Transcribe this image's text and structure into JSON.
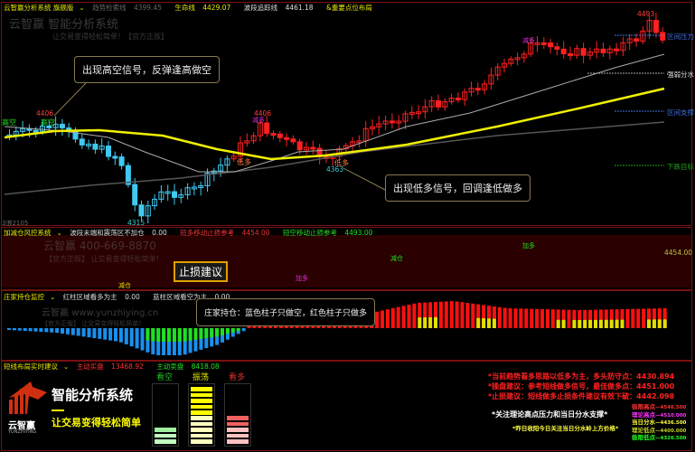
{
  "main_panel": {
    "system_name": "云智赢分析系统 旗舰版",
    "trend_line": {
      "label": "趋势检索线",
      "value": "4399.45"
    },
    "life_line": {
      "label": "生命线",
      "value": "4429.07"
    },
    "wave_line": {
      "label": "波段追踪线",
      "value": "4461.18"
    },
    "key_points": "&重要点位布局",
    "watermark_brand": "云智赢 智能分析系统",
    "watermark_slogan": "让交易变得轻松简单！【官方正版】",
    "price_labels": {
      "high_left": "4406",
      "low": "4315",
      "high_mid": "4406",
      "low_mid": "4363",
      "high_right": "4493"
    },
    "signals": {
      "gao_kong": "高空",
      "gao_kong2": "高空",
      "di_duo": "低多",
      "di_duo2": "低多",
      "jian_duo": "减多",
      "jian_duo2": "减多"
    },
    "bubble_short": "出现高空信号，反弹逢高做空",
    "bubble_long": "出现低多信号，回调逢低做多",
    "right_labels": {
      "pressure": "区间压力",
      "divider": "强弱分水",
      "support": "区间支撑",
      "target": "下跌目标"
    },
    "bottom_label": "3浪2105"
  },
  "risk_panel": {
    "title": "加减仓风控系统",
    "item1": {
      "label": "波段末端和震荡区不加仓",
      "value": "0.00"
    },
    "item2": {
      "label": "短多移动止损参考",
      "value": "4454.00"
    },
    "item3": {
      "label": "短空移动止损参考",
      "value": "4493.00"
    },
    "watermark_phone": "云智赢 400-669-8870",
    "watermark_slogan": "【官方正版】 让交易变得轻松简单！",
    "stop_loss_callout": "止损建议",
    "labels": {
      "reduce": "减仓",
      "reduce2": "减仓",
      "add": "加多",
      "add2": "加多"
    },
    "price_tag": "4454.00"
  },
  "holding_panel": {
    "title": "庄家持仓监控",
    "item1": {
      "label": "红柱区域看多为主",
      "value": "0.00"
    },
    "item2": {
      "label": "蓝柱区域看空为主",
      "value": "0.00"
    },
    "watermark_site": "云智赢 www.yunzhiying.cn",
    "watermark_slogan": "【官方正版】 让交易变得轻松简单！",
    "bubble": "庄家持仓：蓝色柱子只做空，红色柱子只做多"
  },
  "advice_panel": {
    "title": "短线布局实时建议",
    "buy": {
      "label": "主动买盘",
      "value": "13468.92"
    },
    "sell": {
      "label": "主动卖盘",
      "value": "8418.08"
    },
    "logo_text": "云智赢",
    "logo_sub": "YUNZHIYING",
    "headline": "智能分析系统",
    "slogan": "让交易变得轻松简单",
    "meters": [
      {
        "label": "看空",
        "level": 3,
        "total": 10,
        "color": "#20c020"
      },
      {
        "label": "振荡",
        "level": 10,
        "total": 10,
        "color": "#e0e000"
      },
      {
        "label": "看多",
        "level": 5,
        "total": 10,
        "color": "#e03030"
      }
    ],
    "advice_lines": [
      "*当前趋势看多思路以低多为主，多头防守点：4430.894",
      "*操盘建议：参考短线做多信号，最佳做多点：4451.000",
      "*止损建议：短线做多止损条件建议有效下破：4442.098"
    ],
    "focus_note": "*关注理论高点压力和当日分水支撑*",
    "yesterday_note": "*昨日收阳今日关注当日分水岭上方价格*",
    "levels": [
      {
        "label": "极限高点",
        "value": "4546.500",
        "color": "#ff3030"
      },
      {
        "label": "理论高点",
        "value": "4510.000",
        "color": "#ff30ff"
      },
      {
        "label": "当日分水",
        "value": "4436.500",
        "color": "#ffff40"
      },
      {
        "label": "理论低点",
        "value": "4400.000",
        "color": "#c0d020"
      },
      {
        "label": "极限低点",
        "value": "4326.500",
        "color": "#20ff20"
      }
    ]
  }
}
